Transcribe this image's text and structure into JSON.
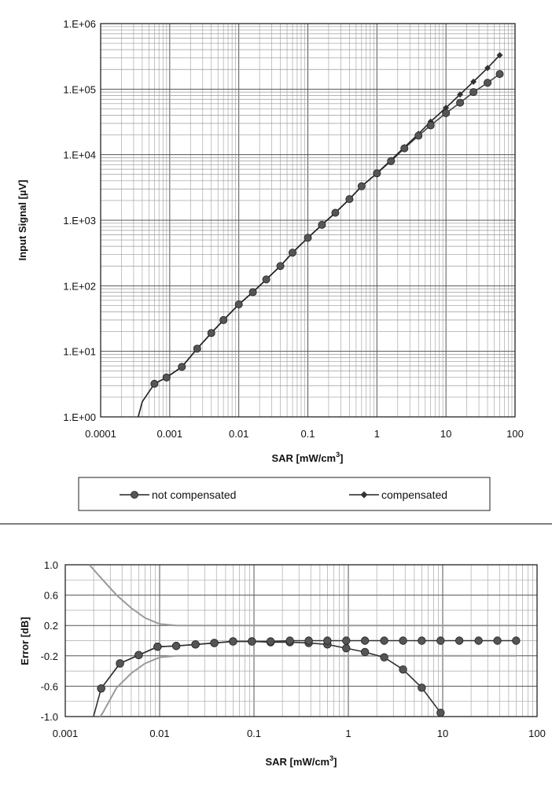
{
  "chart_data": [
    {
      "type": "line",
      "x_scale": "log",
      "y_scale": "log",
      "xlabel": "SAR [mW/cm",
      "xlabel_sup": "3",
      "xlabel_end": "]",
      "ylabel": "Input Signal [µV]",
      "xlim": [
        0.0001,
        100
      ],
      "ylim": [
        1,
        1000000
      ],
      "x_ticks": [
        0.0001,
        0.001,
        0.01,
        0.1,
        1,
        10,
        100
      ],
      "x_tick_labels": [
        "0.0001",
        "0.001",
        "0.01",
        "0.1",
        "1",
        "10",
        "100"
      ],
      "y_ticks": [
        1,
        10,
        100,
        1000,
        10000,
        100000,
        1000000
      ],
      "y_tick_labels": [
        "1.E+00",
        "1.E+01",
        "1.E+02",
        "1.E+03",
        "1.E+04",
        "1.E+05",
        "1.E+06"
      ],
      "grid": true,
      "legend_position": "bottom",
      "series": [
        {
          "name": "not compensated",
          "marker": "circle",
          "color": "#444444",
          "x": [
            0.0006,
            0.0009,
            0.0015,
            0.0025,
            0.004,
            0.006,
            0.01,
            0.016,
            0.025,
            0.04,
            0.06,
            0.1,
            0.16,
            0.25,
            0.4,
            0.6,
            1,
            1.6,
            2.5,
            4,
            6,
            10,
            16,
            25,
            40,
            60
          ],
          "y": [
            3.2,
            4,
            5.8,
            11,
            19,
            30,
            52,
            80,
            125,
            200,
            320,
            540,
            850,
            1300,
            2100,
            3300,
            5200,
            8000,
            12500,
            19500,
            28000,
            43000,
            62000,
            90000,
            125000,
            170000
          ]
        },
        {
          "name": "compensated",
          "marker": "diamond",
          "color": "#222222",
          "x": [
            0.0006,
            0.0009,
            0.0015,
            0.0025,
            0.004,
            0.006,
            0.01,
            0.016,
            0.025,
            0.04,
            0.06,
            0.1,
            0.16,
            0.25,
            0.4,
            0.6,
            1,
            1.6,
            2.5,
            4,
            6,
            10,
            16,
            25,
            40,
            60
          ],
          "y": [
            3.2,
            4,
            5.8,
            11,
            19,
            30,
            52,
            80,
            125,
            200,
            320,
            540,
            850,
            1300,
            2100,
            3300,
            5200,
            8300,
            13000,
            20800,
            32000,
            52000,
            83000,
            130000,
            210000,
            330000
          ]
        }
      ]
    },
    {
      "type": "line",
      "x_scale": "log",
      "xlabel": "SAR [mW/cm",
      "xlabel_sup": "3",
      "xlabel_end": "]",
      "ylabel": "Error [dB]",
      "xlim": [
        0.001,
        100
      ],
      "ylim": [
        -1.0,
        1.0
      ],
      "x_ticks": [
        0.001,
        0.01,
        0.1,
        1,
        10,
        100
      ],
      "x_tick_labels": [
        "0.001",
        "0.01",
        "0.1",
        "1",
        "10",
        "100"
      ],
      "y_ticks": [
        1.0,
        0.6,
        0.2,
        -0.2,
        -0.6,
        -1.0
      ],
      "y_tick_labels": [
        "1.0",
        "0.6",
        "0.2",
        "-0.2",
        "-0.6",
        "-1.0"
      ],
      "grid": true,
      "series": [
        {
          "marker": "circle",
          "color": "#333333",
          "x": [
            0.0024,
            0.0038,
            0.006,
            0.0095,
            0.015,
            0.024,
            0.038,
            0.06,
            0.095,
            0.15,
            0.24,
            0.38,
            0.6,
            0.95,
            1.5,
            2.4,
            3.8,
            6,
            9.5
          ],
          "y": [
            -0.63,
            -0.3,
            -0.19,
            -0.08,
            -0.07,
            -0.05,
            -0.03,
            -0.01,
            -0.01,
            -0.02,
            -0.02,
            -0.03,
            -0.05,
            -0.1,
            -0.15,
            -0.22,
            -0.38,
            -0.62,
            -0.95
          ]
        },
        {
          "marker": "circle",
          "color": "#333333",
          "x": [
            0.0024,
            0.0038,
            0.006,
            0.0095,
            0.015,
            0.024,
            0.038,
            0.06,
            0.095,
            0.15,
            0.24,
            0.38,
            0.6,
            0.95,
            1.5,
            2.4,
            3.8,
            6,
            9.5,
            15,
            24,
            38,
            60
          ],
          "y": [
            -0.63,
            -0.3,
            -0.19,
            -0.08,
            -0.07,
            -0.05,
            -0.03,
            -0.01,
            -0.01,
            -0.01,
            0.0,
            0.0,
            0.0,
            0.0,
            0.0,
            0.0,
            0.0,
            0.0,
            0.0,
            0.0,
            0.0,
            0.0,
            0.0
          ]
        },
        {
          "marker": "none",
          "color": "#9a9a9a",
          "x": [
            0.0018,
            0.0025,
            0.0035,
            0.005,
            0.007,
            0.01,
            0.015,
            0.03,
            0.1,
            1,
            10,
            60
          ],
          "y": [
            1.0,
            0.8,
            0.6,
            0.43,
            0.3,
            0.22,
            0.2,
            0.2,
            0.2,
            0.2,
            0.2,
            0.2
          ]
        },
        {
          "marker": "none",
          "color": "#9a9a9a",
          "x": [
            0.0018,
            0.0025,
            0.0035,
            0.005,
            0.007,
            0.01,
            0.015,
            0.03,
            0.1,
            1,
            10,
            60
          ],
          "y": [
            -1.2,
            -0.95,
            -0.62,
            -0.43,
            -0.3,
            -0.22,
            -0.2,
            -0.2,
            -0.2,
            -0.2,
            -0.2,
            -0.2
          ]
        }
      ]
    }
  ]
}
